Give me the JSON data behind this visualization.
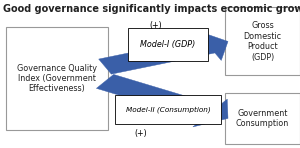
{
  "title": "Good governance significantly impacts economic growth",
  "title_fontsize": 7.0,
  "left_box_text": "Governance Quality\nIndex (Government\nEffectiveness)",
  "right_top_box_text": "Gross\nDomestic\nProduct\n(GDP)",
  "right_bottom_box_text": "Government\nConsumption",
  "arrow_top_label": "Model-I (GDP)",
  "arrow_bottom_label": "Model-II (Consumption)",
  "plus_top": "(+)",
  "plus_bottom": "(+)",
  "arrow_color": "#3A5FA8",
  "box_edge_color": "#999999",
  "background_color": "#ffffff",
  "text_color": "#222222"
}
